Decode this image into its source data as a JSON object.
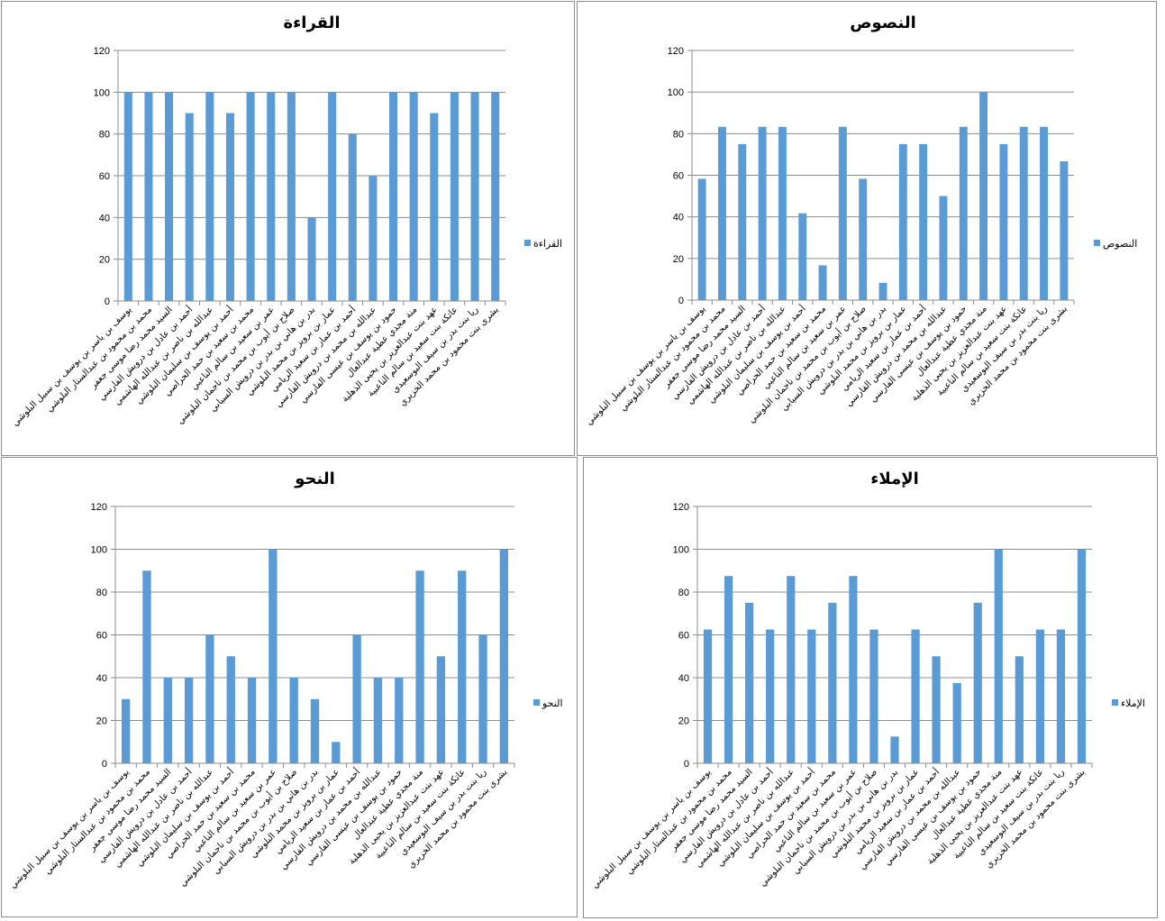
{
  "chart_data": [
    {
      "type": "bar",
      "title": "القراءة",
      "legend": "القراءة",
      "legend_position": "right",
      "ylim": [
        0,
        120
      ],
      "yticks": [
        "0",
        "20",
        "40",
        "60",
        "80",
        "100",
        "120"
      ],
      "grid": true,
      "color": "#5b9bd5",
      "categories": [
        "يوسف بن ياسر بن يوسف بن سبيل البلوشي",
        "محمد بن محمود بن عبدالستار البلوشي",
        "السيد محمد رضا موسى جعفر",
        "أحمد بن عادل بن درويش الفارسي",
        "عبدالله بن ناصر بن عبدالله الهاشمي",
        "أحمد بن يوسف بن سليمان البلوشي",
        "محمد بن سعيد بن حمد الحراصي",
        "عمر بن سعيد بن سالم الناعبي",
        "صلاح بن أيوب بن محمد بن ناجمان البلوشي",
        "بدر بن هاني بن بدر بن درويش السيابي",
        "عمار بن برويز بن محمد البلوشي",
        "أحمد بن عمار بن سعيد الريامي",
        "عبدالله بن محمد بن درويش الفارسي",
        "حمود بن يوسف بن عيسى الفارسي",
        "منة مجدي عطية عبدالعال",
        "عهد بنت عبدالعزيز بن يحيى الذهلية",
        "عاتكة بنت سعيد بن سالم الناعبية",
        "ريا بنت بدر بن سيف البوسعيدي",
        "بشرى بنت محمود بن محمد الخزيري"
      ],
      "values": [
        100,
        100,
        100,
        90,
        100,
        90,
        100,
        100,
        100,
        40,
        100,
        80,
        60,
        100,
        100,
        90,
        100,
        100,
        100
      ]
    },
    {
      "type": "bar",
      "title": "النصوص",
      "legend": "النصوص",
      "legend_position": "right",
      "ylim": [
        0,
        120
      ],
      "yticks": [
        "0",
        "20",
        "40",
        "60",
        "80",
        "100",
        "120"
      ],
      "grid": true,
      "color": "#5b9bd5",
      "categories": [
        "يوسف بن ياسر بن يوسف بن سبيل البلوشي",
        "محمد بن محمود بن عبدالستار البلوشي",
        "السيد محمد رضا موسى جعفر",
        "أحمد بن عادل بن درويش الفارسي",
        "عبدالله بن ناصر بن عبدالله الهاشمي",
        "أحمد بن يوسف بن سليمان البلوشي",
        "محمد بن سعيد بن حمد الحراصي",
        "عمر بن سعيد بن سالم الناعبي",
        "صلاح بن أيوب بن محمد بن ناجمان البلوشي",
        "بدر بن هاني بن بدر بن درويش السيابي",
        "عمار بن برويز بن محمد البلوشي",
        "أحمد بن عمار بن سعيد الريامي",
        "عبدالله بن محمد بن درويش الفارسي",
        "حمود بن يوسف بن عيسى الفارسي",
        "منة مجدي عطية عبدالعال",
        "عهد بنت عبدالعزيز بن يحيى الذهلية",
        "عاتكة بنت سعيد بن سالم الناعبية",
        "ريا بنت بدر بن سيف البوسعيدي",
        "بشرى بنت محمود بن محمد الخزيري"
      ],
      "values": [
        58.3,
        83.3,
        75,
        83.3,
        83.3,
        41.7,
        16.7,
        83.3,
        58.3,
        8.3,
        75,
        75,
        50,
        83.3,
        100,
        75,
        83.3,
        83.3,
        66.7
      ]
    },
    {
      "type": "bar",
      "title": "النحو",
      "legend": "النحو",
      "legend_position": "right",
      "ylim": [
        0,
        120
      ],
      "yticks": [
        "0",
        "20",
        "40",
        "60",
        "80",
        "100",
        "120"
      ],
      "grid": true,
      "color": "#5b9bd5",
      "categories": [
        "يوسف بن ياسر بن يوسف بن سبيل البلوشي",
        "محمد بن محمود بن عبدالستار البلوشي",
        "السيد محمد رضا موسى جعفر",
        "أحمد بن عادل بن درويش الفارسي",
        "عبدالله بن ناصر بن عبدالله الهاشمي",
        "أحمد بن يوسف بن سليمان البلوشي",
        "محمد بن سعيد بن حمد الحراصي",
        "عمر بن سعيد بن سالم الناعبي",
        "صلاح بن أيوب بن محمد بن ناجمان البلوشي",
        "بدر بن هاني بن بدر بن درويش السيابي",
        "عمار بن برويز بن محمد البلوشي",
        "أحمد بن عمار بن سعيد الريامي",
        "عبدالله بن محمد بن درويش الفارسي",
        "حمود بن يوسف بن عيسى الفارسي",
        "منة مجدي عطية عبدالعال",
        "عهد بنت عبدالعزيز بن يحيى الذهلية",
        "عاتكة بنت سعيد بن سالم الناعبية",
        "ريا بنت بدر بن سيف البوسعيدي",
        "بشرى بنت محمود بن محمد الخزيري"
      ],
      "values": [
        30,
        90,
        40,
        40,
        60,
        50,
        40,
        100,
        40,
        30,
        10,
        60,
        40,
        40,
        90,
        50,
        90,
        60,
        100
      ]
    },
    {
      "type": "bar",
      "title": "الإملاء",
      "legend": "الإملاء",
      "legend_position": "right",
      "ylim": [
        0,
        120
      ],
      "yticks": [
        "0",
        "20",
        "40",
        "60",
        "80",
        "100",
        "120"
      ],
      "grid": true,
      "color": "#5b9bd5",
      "categories": [
        "يوسف بن ياسر بن يوسف بن سبيل البلوشي",
        "محمد بن محمود بن عبدالستار البلوشي",
        "السيد محمد رضا موسى جعفر",
        "أحمد بن عادل بن درويش الفارسي",
        "عبدالله بن ناصر بن عبدالله الهاشمي",
        "أحمد بن يوسف بن سليمان البلوشي",
        "محمد بن سعيد بن حمد الحراصي",
        "عمر بن سعيد بن سالم الناعبي",
        "صلاح بن أيوب بن محمد بن ناجمان البلوشي",
        "بدر بن هاني بن بدر بن درويش السيابي",
        "عمار بن برويز بن محمد البلوشي",
        "أحمد بن عمار بن سعيد الريامي",
        "عبدالله بن محمد بن درويش الفارسي",
        "حمود بن يوسف بن عيسى الفارسي",
        "منة مجدي عطية عبدالعال",
        "عهد بنت عبدالعزيز بن يحيى الذهلية",
        "عاتكة بنت سعيد بن سالم الناعبية",
        "ريا بنت بدر بن سيف البوسعيدي",
        "بشرى بنت محمود بن محمد الخزيري"
      ],
      "values": [
        62.5,
        87.5,
        75,
        62.5,
        87.5,
        62.5,
        75,
        87.5,
        62.5,
        12.5,
        62.5,
        50,
        37.5,
        75,
        100,
        50,
        62.5,
        62.5,
        100
      ]
    }
  ]
}
